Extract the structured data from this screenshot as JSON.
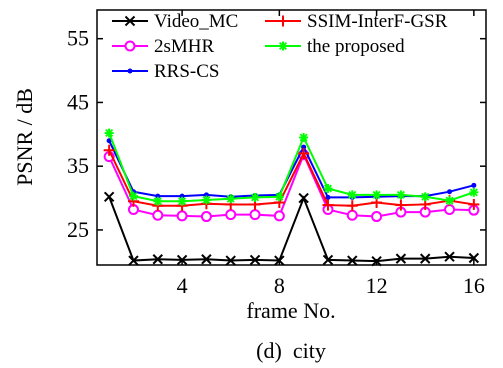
{
  "chart_data": {
    "type": "line",
    "title": "",
    "caption": "(d)  city",
    "xlabel": "frame No.",
    "ylabel": "PSNR / dB",
    "xlim": [
      0.5,
      16.5
    ],
    "ylim": [
      19.5,
      59.5
    ],
    "xticks": [
      4,
      8,
      12,
      16
    ],
    "yticks": [
      25,
      35,
      45,
      55
    ],
    "grid": false,
    "legend_position": "top",
    "x": [
      1,
      2,
      3,
      4,
      5,
      6,
      7,
      8,
      9,
      10,
      11,
      12,
      13,
      14,
      15,
      16
    ],
    "series": [
      {
        "name": "Video_MC",
        "color": "#000000",
        "marker": "x",
        "values": [
          30.2,
          20.2,
          20.4,
          20.3,
          20.4,
          20.2,
          20.3,
          20.2,
          30.0,
          20.3,
          20.2,
          20.1,
          20.5,
          20.5,
          20.8,
          20.6
        ]
      },
      {
        "name": "2sMHR",
        "color": "#ff00ff",
        "marker": "o",
        "values": [
          36.5,
          28.2,
          27.3,
          27.2,
          27.1,
          27.4,
          27.4,
          27.2,
          36.8,
          28.2,
          27.3,
          27.1,
          27.8,
          27.8,
          28.2,
          28.1
        ]
      },
      {
        "name": "RRS-CS",
        "color": "#0000ff",
        "marker": "dot",
        "values": [
          39.0,
          31.0,
          30.3,
          30.3,
          30.5,
          30.2,
          30.4,
          30.5,
          38.0,
          30.1,
          30.1,
          30.2,
          30.3,
          30.3,
          31.0,
          32.0
        ]
      },
      {
        "name": "SSIM-InterF-GSR",
        "color": "#ff0000",
        "marker": "+",
        "values": [
          37.5,
          29.5,
          28.8,
          28.8,
          29.1,
          29.0,
          29.0,
          29.3,
          37.0,
          28.9,
          28.8,
          29.3,
          28.9,
          29.0,
          29.6,
          29.0
        ]
      },
      {
        "name": "the proposed",
        "color": "#00ff00",
        "marker": "*",
        "values": [
          40.2,
          30.3,
          29.5,
          29.5,
          29.7,
          29.9,
          30.1,
          30.2,
          39.5,
          31.5,
          30.5,
          30.5,
          30.5,
          30.2,
          29.6,
          30.9
        ]
      }
    ]
  }
}
